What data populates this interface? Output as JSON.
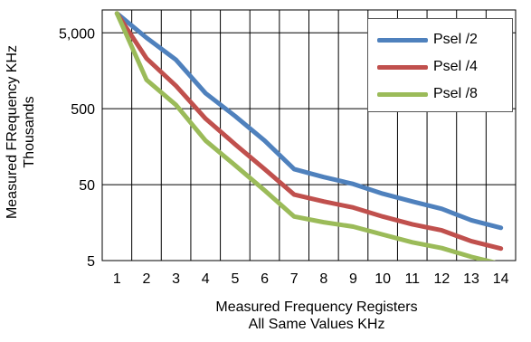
{
  "chart_data": {
    "type": "line",
    "title": "",
    "xlabel": [
      "Measured Frequency Registers",
      "All Same Values  KHz"
    ],
    "ylabel": [
      "Measured FRequency KHz",
      "Thousands"
    ],
    "y_scale": "log",
    "ylim": [
      5,
      10000
    ],
    "y_ticks": [
      5,
      50,
      500,
      5000
    ],
    "y_tick_labels": [
      "5",
      "50",
      "500",
      "5,000"
    ],
    "x": [
      1,
      2,
      3,
      4,
      5,
      6,
      7,
      8,
      9,
      10,
      11,
      12,
      13,
      14
    ],
    "grid": "both",
    "legend_position": "top-right",
    "series": [
      {
        "name": "Psel /2",
        "color": "#4f81bd",
        "values": [
          9000,
          4300,
          2200,
          800,
          400,
          190,
          80,
          63,
          51,
          38,
          30,
          24,
          17,
          13.5
        ]
      },
      {
        "name": "Psel /4",
        "color": "#c0504d",
        "values": [
          9000,
          2300,
          1000,
          370,
          170,
          80,
          37,
          30,
          25,
          19,
          15,
          12.5,
          9,
          7.2
        ]
      },
      {
        "name": "Psel /8",
        "color": "#9bbb59",
        "values": [
          9000,
          1200,
          560,
          190,
          90,
          42,
          19,
          16,
          14,
          11,
          8.7,
          7.3,
          5.6,
          4.5
        ]
      }
    ]
  }
}
